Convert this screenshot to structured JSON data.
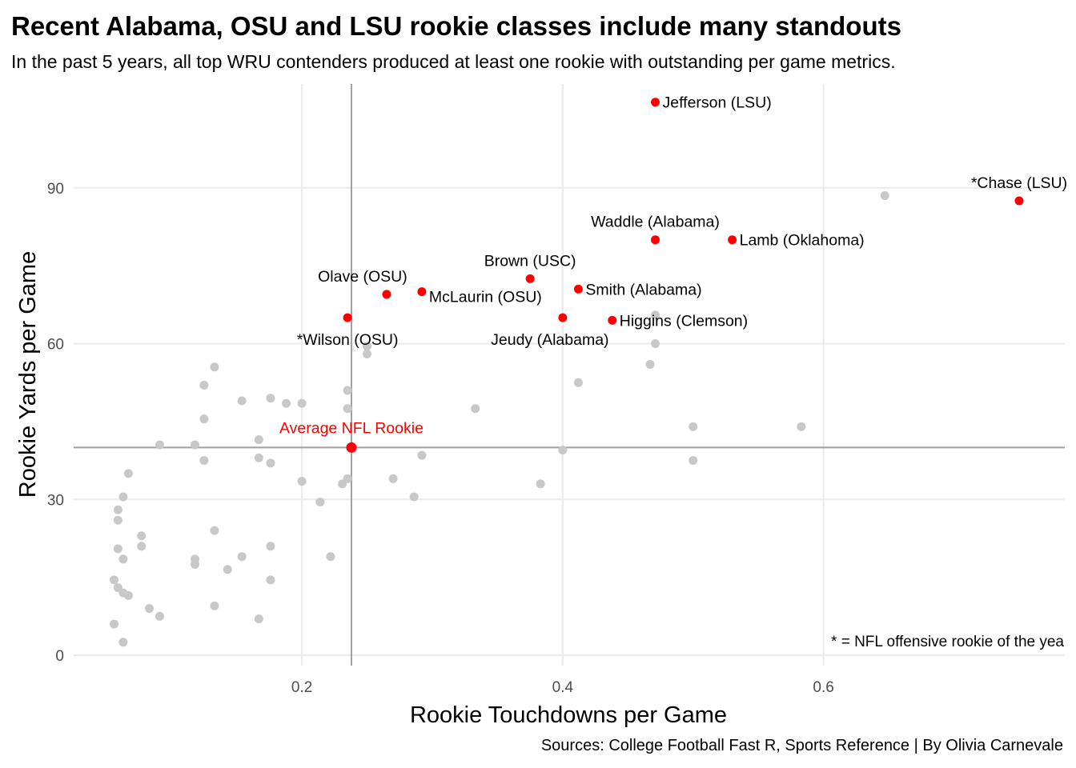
{
  "title": "Recent Alabama, OSU and LSU rookie classes include many standouts",
  "subtitle": "In the past 5 years, all top WRU contenders produced at least one rookie with outstanding per game metrics.",
  "caption": "Sources: College Football Fast R, Sports Reference | By Olivia Carnevale",
  "colors": {
    "highlight": "#ff0000",
    "other": "#c8c8c8",
    "grid": "#ebebeb",
    "reference_line": "#a0a0a0",
    "label": "#000000"
  },
  "chart_data": {
    "type": "scatter",
    "xlabel": "Rookie Touchdowns per Game",
    "ylabel": "Rookie Yards per Game",
    "xlim": [
      0.025,
      0.785
    ],
    "ylim": [
      -2,
      110
    ],
    "xticks": [
      {
        "value": 0.2,
        "label": "0.2"
      },
      {
        "value": 0.4,
        "label": "0.4"
      },
      {
        "value": 0.6,
        "label": "0.6"
      }
    ],
    "yticks": [
      {
        "value": 0,
        "label": "0"
      },
      {
        "value": 30,
        "label": "30"
      },
      {
        "value": 60,
        "label": "60"
      },
      {
        "value": 90,
        "label": "90"
      }
    ],
    "grid": true,
    "reference_lines": {
      "x": 0.238,
      "y": 40
    },
    "average_point": {
      "x": 0.238,
      "y": 40,
      "label": "Average NFL Rookie"
    },
    "footnote": "* = NFL offensive rookie of the yea",
    "highlighted": [
      {
        "name": "Jefferson (LSU)",
        "x": 0.471,
        "y": 106.5,
        "label_pos": "right"
      },
      {
        "name": "*Chase (LSU)",
        "x": 0.75,
        "y": 87.5,
        "label_pos": "above"
      },
      {
        "name": "Waddle (Alabama)",
        "x": 0.471,
        "y": 80,
        "label_pos": "above"
      },
      {
        "name": "Lamb (Oklahoma)",
        "x": 0.53,
        "y": 80,
        "label_pos": "right"
      },
      {
        "name": "Brown (USC)",
        "x": 0.375,
        "y": 72.5,
        "label_pos": "above"
      },
      {
        "name": "Olave (OSU)",
        "x": 0.265,
        "y": 69.5,
        "label_pos": "above-left"
      },
      {
        "name": "McLaurin (OSU)",
        "x": 0.292,
        "y": 70,
        "label_pos": "below-right"
      },
      {
        "name": "Smith (Alabama)",
        "x": 0.412,
        "y": 70.5,
        "label_pos": "right"
      },
      {
        "name": "*Wilson (OSU)",
        "x": 0.235,
        "y": 65,
        "label_pos": "below"
      },
      {
        "name": "Jeudy (Alabama)",
        "x": 0.4,
        "y": 65,
        "label_pos": "below-left"
      },
      {
        "name": "Higgins (Clemson)",
        "x": 0.438,
        "y": 64.5,
        "label_pos": "right"
      }
    ],
    "others": [
      {
        "x": 0.647,
        "y": 88.5
      },
      {
        "x": 0.471,
        "y": 65.5
      },
      {
        "x": 0.471,
        "y": 60
      },
      {
        "x": 0.467,
        "y": 56
      },
      {
        "x": 0.25,
        "y": 58
      },
      {
        "x": 0.25,
        "y": 59.5
      },
      {
        "x": 0.412,
        "y": 52.5
      },
      {
        "x": 0.333,
        "y": 47.5
      },
      {
        "x": 0.5,
        "y": 44
      },
      {
        "x": 0.583,
        "y": 44
      },
      {
        "x": 0.5,
        "y": 37.5
      },
      {
        "x": 0.4,
        "y": 39.5
      },
      {
        "x": 0.383,
        "y": 33
      },
      {
        "x": 0.27,
        "y": 34
      },
      {
        "x": 0.286,
        "y": 30.5
      },
      {
        "x": 0.292,
        "y": 38.5
      },
      {
        "x": 0.235,
        "y": 51
      },
      {
        "x": 0.235,
        "y": 47.5
      },
      {
        "x": 0.235,
        "y": 34
      },
      {
        "x": 0.231,
        "y": 33
      },
      {
        "x": 0.222,
        "y": 19
      },
      {
        "x": 0.214,
        "y": 29.5
      },
      {
        "x": 0.2,
        "y": 48.5
      },
      {
        "x": 0.2,
        "y": 33.5
      },
      {
        "x": 0.188,
        "y": 48.5
      },
      {
        "x": 0.176,
        "y": 49.5
      },
      {
        "x": 0.176,
        "y": 37
      },
      {
        "x": 0.176,
        "y": 21
      },
      {
        "x": 0.176,
        "y": 14.5
      },
      {
        "x": 0.167,
        "y": 41.5
      },
      {
        "x": 0.167,
        "y": 38
      },
      {
        "x": 0.167,
        "y": 7
      },
      {
        "x": 0.154,
        "y": 49
      },
      {
        "x": 0.154,
        "y": 19
      },
      {
        "x": 0.143,
        "y": 16.5
      },
      {
        "x": 0.133,
        "y": 55.5
      },
      {
        "x": 0.133,
        "y": 24
      },
      {
        "x": 0.133,
        "y": 9.5
      },
      {
        "x": 0.125,
        "y": 52
      },
      {
        "x": 0.125,
        "y": 45.5
      },
      {
        "x": 0.125,
        "y": 37.5
      },
      {
        "x": 0.118,
        "y": 40.5
      },
      {
        "x": 0.118,
        "y": 18.5
      },
      {
        "x": 0.118,
        "y": 17.5
      },
      {
        "x": 0.091,
        "y": 40.5
      },
      {
        "x": 0.091,
        "y": 7.5
      },
      {
        "x": 0.083,
        "y": 9
      },
      {
        "x": 0.077,
        "y": 23
      },
      {
        "x": 0.077,
        "y": 21
      },
      {
        "x": 0.067,
        "y": 35
      },
      {
        "x": 0.067,
        "y": 11.5
      },
      {
        "x": 0.063,
        "y": 30.5
      },
      {
        "x": 0.063,
        "y": 18.5
      },
      {
        "x": 0.063,
        "y": 12
      },
      {
        "x": 0.063,
        "y": 2.5
      },
      {
        "x": 0.059,
        "y": 28
      },
      {
        "x": 0.059,
        "y": 26
      },
      {
        "x": 0.059,
        "y": 20.5
      },
      {
        "x": 0.059,
        "y": 13
      },
      {
        "x": 0.056,
        "y": 14.5
      },
      {
        "x": 0.056,
        "y": 6
      }
    ]
  }
}
